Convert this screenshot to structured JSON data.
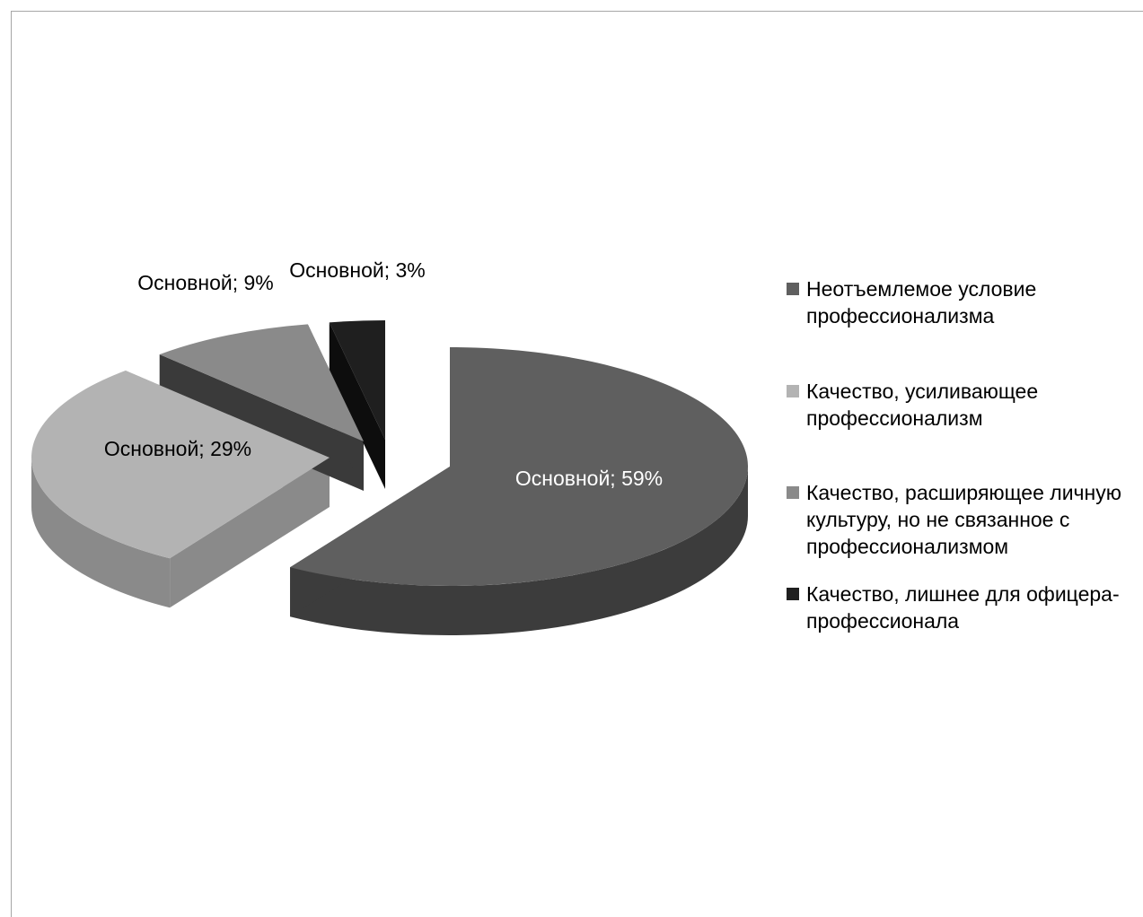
{
  "chart_data": {
    "type": "pie",
    "title": "",
    "legend_position": "right",
    "slices": [
      {
        "name": "Неотъемлемое условие профессионализма",
        "legend_lines": [
          "Неотъемлемое условие",
          "профессионализма"
        ],
        "label": "Основной; 59%",
        "value": 59,
        "color": "#5f5f5f",
        "side_color": "#3c3c3c",
        "exploded": true
      },
      {
        "name": "Качество, усиливающее профессионализм",
        "legend_lines": [
          "Качество, усиливающее",
          "профессионализм"
        ],
        "label": "Основной; 29%",
        "value": 29,
        "color": "#b3b3b3",
        "side_color": "#8a8a8a",
        "exploded": true
      },
      {
        "name": "Качество, расширяющее личную культуру, но не связанное с профессионализмом",
        "legend_lines": [
          "Качество, расширяющее личную",
          "культуру, но не связанное с",
          "профессионализмом"
        ],
        "label": "Основной; 9%",
        "value": 9,
        "color": "#8a8a8a",
        "side_color": "#3a3a3a",
        "exploded": true
      },
      {
        "name": "Качество, лишнее для офицера-профессионала",
        "legend_lines": [
          "Качество, лишнее для офицера-",
          "профессионала"
        ],
        "label": "Основной; 3%",
        "value": 3,
        "color": "#1f1f1f",
        "side_color": "#0d0d0d",
        "exploded": true
      }
    ]
  }
}
